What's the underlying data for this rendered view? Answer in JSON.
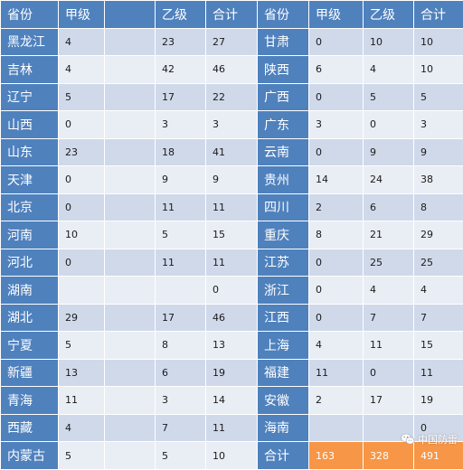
{
  "headers": {
    "left": {
      "province": "省份",
      "a": "甲级",
      "gap": "",
      "b": "乙级",
      "total": "合计"
    },
    "right": {
      "province": "省份",
      "a": "甲级",
      "b": "乙级",
      "total": "合计"
    }
  },
  "rows": [
    {
      "left": {
        "province": "黑龙江",
        "a": "4",
        "gap": "",
        "b": "23",
        "total": "27"
      },
      "right": {
        "province": "甘肃",
        "a": "0",
        "b": "10",
        "total": "10"
      }
    },
    {
      "left": {
        "province": "吉林",
        "a": "4",
        "gap": "",
        "b": "42",
        "total": "46"
      },
      "right": {
        "province": "陕西",
        "a": "6",
        "b": "4",
        "total": "10"
      }
    },
    {
      "left": {
        "province": "辽宁",
        "a": "5",
        "gap": "",
        "b": "17",
        "total": "22"
      },
      "right": {
        "province": "广西",
        "a": "0",
        "b": "5",
        "total": "5"
      }
    },
    {
      "left": {
        "province": "山西",
        "a": "0",
        "gap": "",
        "b": "3",
        "total": "3"
      },
      "right": {
        "province": "广东",
        "a": "3",
        "b": "0",
        "total": "3"
      }
    },
    {
      "left": {
        "province": "山东",
        "a": "23",
        "gap": "",
        "b": "18",
        "total": "41"
      },
      "right": {
        "province": "云南",
        "a": "0",
        "b": "9",
        "total": "9"
      }
    },
    {
      "left": {
        "province": "天津",
        "a": "0",
        "gap": "",
        "b": "9",
        "total": "9"
      },
      "right": {
        "province": "贵州",
        "a": "14",
        "b": "24",
        "total": "38"
      }
    },
    {
      "left": {
        "province": "北京",
        "a": "0",
        "gap": "",
        "b": "11",
        "total": "11"
      },
      "right": {
        "province": "四川",
        "a": "2",
        "b": "6",
        "total": "8"
      }
    },
    {
      "left": {
        "province": "河南",
        "a": "10",
        "gap": "",
        "b": "5",
        "total": "15"
      },
      "right": {
        "province": "重庆",
        "a": "8",
        "b": "21",
        "total": "29"
      }
    },
    {
      "left": {
        "province": "河北",
        "a": "0",
        "gap": "",
        "b": "11",
        "total": "11"
      },
      "right": {
        "province": "江苏",
        "a": "0",
        "b": "25",
        "total": "25"
      }
    },
    {
      "left": {
        "province": "湖南",
        "a": "",
        "gap": "",
        "b": "",
        "total": "0"
      },
      "right": {
        "province": "浙江",
        "a": "0",
        "b": "4",
        "total": "4"
      }
    },
    {
      "left": {
        "province": "湖北",
        "a": "29",
        "gap": "",
        "b": "17",
        "total": "46"
      },
      "right": {
        "province": "江西",
        "a": "0",
        "b": "7",
        "total": "7"
      }
    },
    {
      "left": {
        "province": "宁夏",
        "a": "5",
        "gap": "",
        "b": "8",
        "total": "13"
      },
      "right": {
        "province": "上海",
        "a": "4",
        "b": "11",
        "total": "15"
      }
    },
    {
      "left": {
        "province": "新疆",
        "a": "13",
        "gap": "",
        "b": "6",
        "total": "19"
      },
      "right": {
        "province": "福建",
        "a": "11",
        "b": "0",
        "total": "11"
      }
    },
    {
      "left": {
        "province": "青海",
        "a": "11",
        "gap": "",
        "b": "3",
        "total": "14"
      },
      "right": {
        "province": "安徽",
        "a": "2",
        "b": "17",
        "total": "19"
      }
    },
    {
      "left": {
        "province": "西藏",
        "a": "4",
        "gap": "",
        "b": "7",
        "total": "11"
      },
      "right": {
        "province": "海南",
        "a": "",
        "b": "",
        "total": "0"
      }
    },
    {
      "left": {
        "province": "内蒙古",
        "a": "5",
        "gap": "",
        "b": "5",
        "total": "10"
      },
      "right": {
        "province": "合计",
        "a": "163",
        "b": "328",
        "total": "491"
      }
    }
  ],
  "watermark": "中国防雷",
  "icons": {
    "watermark_icon": "wechat-icon"
  },
  "colors": {
    "header_blue": "#4f81bd",
    "row_dark": "#d0d9ea",
    "row_light": "#e9edf4",
    "total_orange": "#f79646"
  }
}
